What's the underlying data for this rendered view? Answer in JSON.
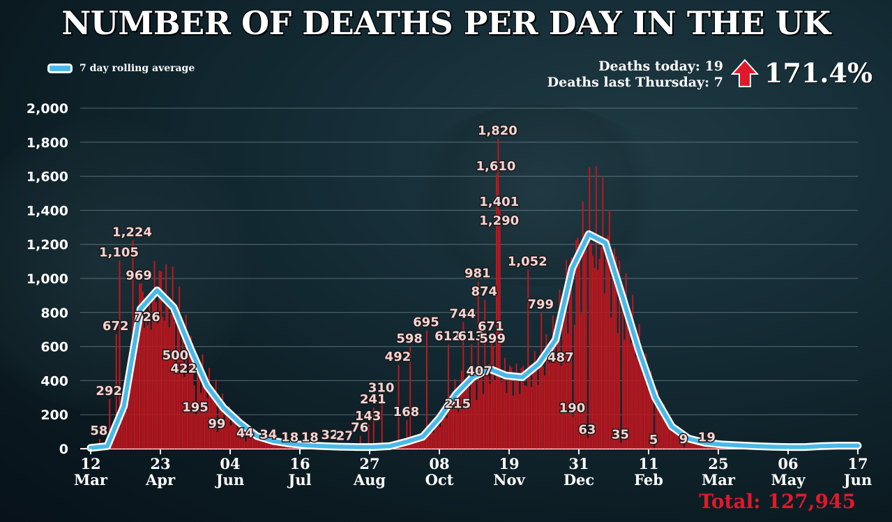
{
  "title": "NUMBER OF DEATHS PER DAY IN THE UK",
  "legend": {
    "label": "7 day rolling average"
  },
  "stats": {
    "deaths_today": "Deaths today: 19",
    "deaths_last_thursday": "Deaths last Thursday: 7",
    "change": "171.4%"
  },
  "total": "Total: 127,945",
  "colors": {
    "bars": "#c0161e",
    "line": "#4ab9e8",
    "line_outline": "#ffffff",
    "total_text": "#e0192a",
    "arrow": "#e0192a"
  },
  "chart_data": {
    "type": "bar",
    "title": "NUMBER OF DEATHS PER DAY IN THE UK",
    "ylim": [
      0,
      2000
    ],
    "yticks": [
      "0",
      "200",
      "400",
      "600",
      "800",
      "1,000",
      "1,200",
      "1,400",
      "1,600",
      "1,800",
      "2,000"
    ],
    "xticks": [
      {
        "day": "12",
        "month": "Mar"
      },
      {
        "day": "23",
        "month": "Apr"
      },
      {
        "day": "04",
        "month": "Jun"
      },
      {
        "day": "16",
        "month": "Jul"
      },
      {
        "day": "27",
        "month": "Aug"
      },
      {
        "day": "08",
        "month": "Oct"
      },
      {
        "day": "19",
        "month": "Nov"
      },
      {
        "day": "31",
        "month": "Dec"
      },
      {
        "day": "11",
        "month": "Feb"
      },
      {
        "day": "25",
        "month": "Mar"
      },
      {
        "day": "06",
        "month": "May"
      },
      {
        "day": "17",
        "month": "Jun"
      }
    ],
    "grid": true,
    "legend_position": "top-left",
    "series": [
      {
        "name": "7 day rolling average",
        "type": "line",
        "x": [
          0,
          10,
          20,
          30,
          40,
          50,
          60,
          70,
          80,
          90,
          100,
          110,
          120,
          130,
          140,
          150,
          160,
          170,
          180,
          190,
          200,
          210,
          220,
          230,
          240,
          250,
          260,
          270,
          280,
          290,
          300,
          310,
          320,
          330,
          340,
          350,
          360,
          370,
          380,
          390,
          400,
          410,
          420,
          430,
          440,
          450,
          460,
          462
        ],
        "values": [
          5,
          15,
          250,
          820,
          930,
          830,
          590,
          370,
          240,
          150,
          75,
          45,
          30,
          20,
          15,
          12,
          10,
          10,
          15,
          40,
          70,
          180,
          320,
          420,
          470,
          430,
          420,
          500,
          640,
          1060,
          1260,
          1210,
          900,
          580,
          300,
          130,
          60,
          35,
          25,
          20,
          15,
          12,
          10,
          10,
          15,
          18,
          18,
          18
        ]
      }
    ],
    "labeled_points": [
      {
        "x": 5,
        "value": 58,
        "label": "58"
      },
      {
        "x": 11,
        "value": 292,
        "label": "292"
      },
      {
        "x": 15,
        "value": 672,
        "label": "672"
      },
      {
        "x": 17,
        "value": 1105,
        "label": "1,105"
      },
      {
        "x": 25,
        "value": 1224,
        "label": "1,224"
      },
      {
        "x": 29,
        "value": 969,
        "label": "969"
      },
      {
        "x": 34,
        "value": 726,
        "label": "726"
      },
      {
        "x": 51,
        "value": 500,
        "label": "500"
      },
      {
        "x": 56,
        "value": 422,
        "label": "422"
      },
      {
        "x": 63,
        "value": 195,
        "label": "195"
      },
      {
        "x": 76,
        "value": 99,
        "label": "99"
      },
      {
        "x": 93,
        "value": 44,
        "label": "44"
      },
      {
        "x": 107,
        "value": 34,
        "label": "34"
      },
      {
        "x": 120,
        "value": 18,
        "label": "18"
      },
      {
        "x": 132,
        "value": 18,
        "label": "18"
      },
      {
        "x": 144,
        "value": 32,
        "label": "32"
      },
      {
        "x": 153,
        "value": 27,
        "label": "27"
      },
      {
        "x": 162,
        "value": 76,
        "label": "76"
      },
      {
        "x": 167,
        "value": 143,
        "label": "143"
      },
      {
        "x": 170,
        "value": 241,
        "label": "241"
      },
      {
        "x": 175,
        "value": 310,
        "label": "310"
      },
      {
        "x": 185,
        "value": 492,
        "label": "492"
      },
      {
        "x": 190,
        "value": 168,
        "label": "168"
      },
      {
        "x": 192,
        "value": 598,
        "label": "598"
      },
      {
        "x": 202,
        "value": 695,
        "label": "695"
      },
      {
        "x": 215,
        "value": 612,
        "label": "612"
      },
      {
        "x": 221,
        "value": 215,
        "label": "215"
      },
      {
        "x": 224,
        "value": 744,
        "label": "744"
      },
      {
        "x": 229,
        "value": 613,
        "label": "613"
      },
      {
        "x": 234,
        "value": 407,
        "label": "407"
      },
      {
        "x": 233,
        "value": 981,
        "label": "981"
      },
      {
        "x": 237,
        "value": 874,
        "label": "874"
      },
      {
        "x": 241,
        "value": 671,
        "label": "671"
      },
      {
        "x": 242,
        "value": 599,
        "label": "599"
      },
      {
        "x": 244,
        "value": 1610,
        "label": "1,610"
      },
      {
        "x": 245,
        "value": 1820,
        "label": "1,820"
      },
      {
        "x": 246,
        "value": 1401,
        "label": "1,401"
      },
      {
        "x": 246,
        "value": 1290,
        "label": "1,290"
      },
      {
        "x": 263,
        "value": 1052,
        "label": "1,052"
      },
      {
        "x": 271,
        "value": 799,
        "label": "799"
      },
      {
        "x": 283,
        "value": 487,
        "label": "487"
      },
      {
        "x": 290,
        "value": 190,
        "label": "190"
      },
      {
        "x": 299,
        "value": 63,
        "label": "63"
      },
      {
        "x": 319,
        "value": 35,
        "label": "35"
      },
      {
        "x": 339,
        "value": 5,
        "label": "5"
      },
      {
        "x": 357,
        "value": 9,
        "label": "9"
      },
      {
        "x": 371,
        "value": 19,
        "label": "19"
      }
    ]
  }
}
